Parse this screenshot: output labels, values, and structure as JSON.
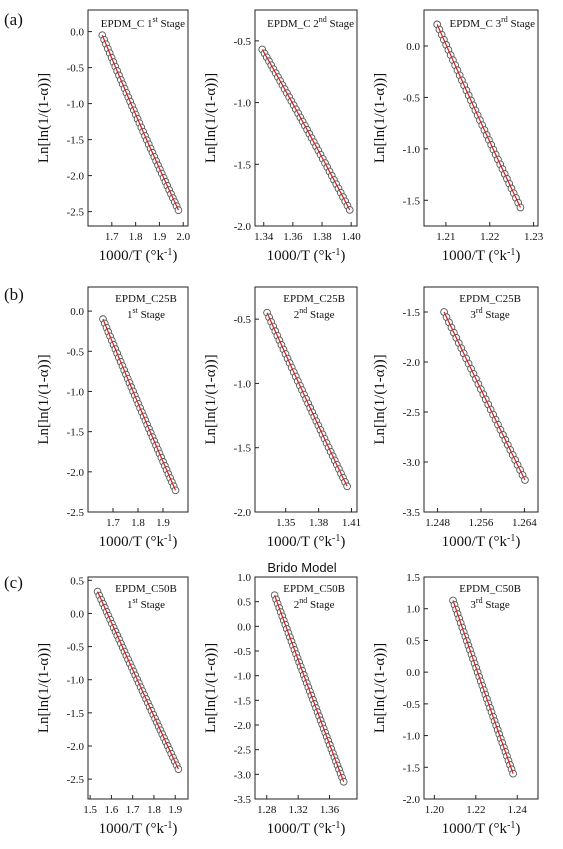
{
  "figure": {
    "model_title": "Brido Model",
    "colors": {
      "marker": "#555555",
      "fit_line": "#cc2222",
      "frame": "#222222"
    }
  },
  "chart_data": [
    {
      "type": "scatter",
      "row": "(a)",
      "panel_label": "EPDM_C 1",
      "label_sup": "st",
      "label_tail": " Stage",
      "xlabel": "1000/T (°k-1)",
      "ylabel": "Ln[ln(1/(1-α))]",
      "xlim": [
        1.6,
        2.02
      ],
      "ylim": [
        -2.7,
        0.3
      ],
      "xticks": [
        1.7,
        1.8,
        1.9,
        2.0
      ],
      "xtick_labels": [
        "1.7",
        "1.8",
        "1.9",
        "2.0"
      ],
      "yticks": [
        -2.5,
        -2.0,
        -1.5,
        -1.0,
        -0.5,
        0.0
      ],
      "ytick_labels": [
        "-2.5",
        "-2.0",
        "-1.5",
        "-1.0",
        "-0.5",
        "0.0"
      ],
      "series": [
        {
          "x_range": [
            1.66,
            1.98
          ],
          "y_range": [
            -0.05,
            -2.48
          ],
          "curve": 0.06,
          "points": 42
        }
      ]
    },
    {
      "type": "scatter",
      "row": "(a)",
      "panel_label": "EPDM_C 2",
      "label_sup": "nd",
      "label_tail": " Stage",
      "xlabel": "1000/T (°k-1)",
      "ylabel": "Ln[ln(1/(1-α))]",
      "xlim": [
        1.334,
        1.404
      ],
      "ylim": [
        -2.0,
        -0.25
      ],
      "xticks": [
        1.34,
        1.36,
        1.38,
        1.4
      ],
      "xtick_labels": [
        "1.34",
        "1.36",
        "1.38",
        "1.40"
      ],
      "yticks": [
        -2.0,
        -1.5,
        -1.0,
        -0.5
      ],
      "ytick_labels": [
        "-2.0",
        "-1.5",
        "-1.0",
        "-0.5"
      ],
      "series": [
        {
          "x_range": [
            1.339,
            1.399
          ],
          "y_range": [
            -0.57,
            -1.87
          ],
          "curve": -0.05,
          "points": 40
        }
      ]
    },
    {
      "type": "scatter",
      "row": "(a)",
      "panel_label": "EPDM_C 3",
      "label_sup": "rd",
      "label_tail": " Stage",
      "xlabel": "1000/T (°k-1)",
      "ylabel": "Ln[ln(1/(1-α))]",
      "xlim": [
        1.205,
        1.231
      ],
      "ylim": [
        -1.75,
        0.35
      ],
      "xticks": [
        1.21,
        1.22,
        1.23
      ],
      "xtick_labels": [
        "1.21",
        "1.22",
        "1.23"
      ],
      "yticks": [
        -1.5,
        -1.0,
        -0.5,
        0.0
      ],
      "ytick_labels": [
        "-1.5",
        "-1.0",
        "-0.5",
        "0.0"
      ],
      "series": [
        {
          "x_range": [
            1.208,
            1.227
          ],
          "y_range": [
            0.21,
            -1.57
          ],
          "curve": 0.04,
          "points": 38
        }
      ]
    },
    {
      "type": "scatter",
      "row": "(b)",
      "panel_label": "EPDM_C25B",
      "label_line2": "1",
      "label_sup": "st",
      "label_tail": " Stage",
      "xlabel": "1000/T (°k-1)",
      "ylabel": "Ln[ln(1/(1-α))]",
      "xlim": [
        1.6,
        2.0
      ],
      "ylim": [
        -2.5,
        0.3
      ],
      "xticks": [
        1.7,
        1.8,
        1.9
      ],
      "xtick_labels": [
        "1.7",
        "1.8",
        "1.9"
      ],
      "yticks": [
        -2.5,
        -2.0,
        -1.5,
        -1.0,
        -0.5,
        0.0
      ],
      "ytick_labels": [
        "-2.5",
        "-2.0",
        "-1.5",
        "-1.0",
        "-0.5",
        "0.0"
      ],
      "series": [
        {
          "x_range": [
            1.66,
            1.95
          ],
          "y_range": [
            -0.1,
            -2.23
          ],
          "curve": 0.03,
          "points": 42
        }
      ]
    },
    {
      "type": "scatter",
      "row": "(b)",
      "panel_label": "EPDM_C25B",
      "label_line2": "2",
      "label_sup": "nd",
      "label_tail": " Stage",
      "xlabel": "1000/T (°k-1)",
      "ylabel": "Ln[ln(1/(1-α))]",
      "xlim": [
        1.322,
        1.415
      ],
      "ylim": [
        -2.0,
        -0.25
      ],
      "xticks": [
        1.35,
        1.38,
        1.41
      ],
      "xtick_labels": [
        "1.35",
        "1.38",
        "1.41"
      ],
      "yticks": [
        -2.0,
        -1.5,
        -1.0,
        -0.5
      ],
      "ytick_labels": [
        "-2.0",
        "-1.5",
        "-1.0",
        "-0.5"
      ],
      "series": [
        {
          "x_range": [
            1.333,
            1.406
          ],
          "y_range": [
            -0.45,
            -1.8
          ],
          "curve": 0.04,
          "points": 40
        }
      ]
    },
    {
      "type": "scatter",
      "row": "(b)",
      "panel_label": "EPDM_C25B",
      "label_line2": "3",
      "label_sup": "rd",
      "label_tail": " Stage",
      "xlabel": "1000/T (°k-1)",
      "ylabel": "Ln[ln(1/(1-α))]",
      "xlim": [
        1.2455,
        1.2665
      ],
      "ylim": [
        -3.5,
        -1.25
      ],
      "xticks": [
        1.248,
        1.256,
        1.264
      ],
      "xtick_labels": [
        "1.248",
        "1.256",
        "1.264"
      ],
      "yticks": [
        -3.5,
        -3.0,
        -2.5,
        -2.0,
        -1.5
      ],
      "ytick_labels": [
        "-3.5",
        "-3.0",
        "-2.5",
        "-2.0",
        "-1.5"
      ],
      "series": [
        {
          "x_range": [
            1.2492,
            1.2641
          ],
          "y_range": [
            -1.5,
            -3.18
          ],
          "curve": 0.02,
          "points": 34
        }
      ]
    },
    {
      "type": "scatter",
      "row": "(c)",
      "panel_label": "EPDM_C50B",
      "label_line2": "1",
      "label_sup": "st",
      "label_tail": " Stage",
      "xlabel": "1000/T (°k-1)",
      "ylabel": "Ln[ln(1/(1-α))]",
      "xlim": [
        1.49,
        1.96
      ],
      "ylim": [
        -2.8,
        0.55
      ],
      "xticks": [
        1.5,
        1.6,
        1.7,
        1.8,
        1.9
      ],
      "xtick_labels": [
        "1.5",
        "1.6",
        "1.7",
        "1.8",
        "1.9"
      ],
      "yticks": [
        -2.5,
        -2.0,
        -1.5,
        -1.0,
        -0.5,
        0.0,
        0.5
      ],
      "ytick_labels": [
        "-2.5",
        "-2.0",
        "-1.5",
        "-1.0",
        "-0.5",
        "0.0",
        "0.5"
      ],
      "series": [
        {
          "x_range": [
            1.535,
            1.915
          ],
          "y_range": [
            0.33,
            -2.35
          ],
          "curve": 0.02,
          "points": 46
        }
      ]
    },
    {
      "type": "scatter",
      "row": "(c)",
      "panel_label": "EPDM_C50B",
      "label_line2": "2",
      "label_sup": "nd",
      "label_tail": " Stage",
      "xlabel": "1000/T (°k-1)",
      "ylabel": "Ln[ln(1/(1-α))]",
      "xlim": [
        1.265,
        1.395
      ],
      "ylim": [
        -3.5,
        1.0
      ],
      "xticks": [
        1.28,
        1.32,
        1.36
      ],
      "xtick_labels": [
        "1.28",
        "1.32",
        "1.36"
      ],
      "yticks": [
        -3.5,
        -3.0,
        -2.5,
        -2.0,
        -1.5,
        -1.0,
        -0.5,
        0.0,
        0.5,
        1.0
      ],
      "ytick_labels": [
        "-3.5",
        "-3.0",
        "-2.5",
        "-2.0",
        "-1.5",
        "-1.0",
        "-0.5",
        "0.0",
        "0.5",
        "1.0"
      ],
      "series": [
        {
          "x_range": [
            1.29,
            1.378
          ],
          "y_range": [
            0.63,
            -3.15
          ],
          "curve": 0.02,
          "points": 46
        }
      ]
    },
    {
      "type": "scatter",
      "row": "(c)",
      "panel_label": "EPDM_C50B",
      "label_line2": "3",
      "label_sup": "rd",
      "label_tail": " Stage",
      "xlabel": "1000/T (°k-1)",
      "ylabel": "Ln[ln(1/(1-α))]",
      "xlim": [
        1.195,
        1.25
      ],
      "ylim": [
        -2.0,
        1.5
      ],
      "xticks": [
        1.2,
        1.22,
        1.24
      ],
      "xtick_labels": [
        "1.20",
        "1.22",
        "1.24"
      ],
      "yticks": [
        -2.0,
        -1.5,
        -1.0,
        -0.5,
        0.0,
        0.5,
        1.0,
        1.5
      ],
      "ytick_labels": [
        "-2.0",
        "-1.5",
        "-1.0",
        "-0.5",
        "0.0",
        "0.5",
        "1.0",
        "1.5"
      ],
      "series": [
        {
          "x_range": [
            1.209,
            1.238
          ],
          "y_range": [
            1.13,
            -1.6
          ],
          "curve": 0.02,
          "points": 40
        }
      ]
    }
  ]
}
